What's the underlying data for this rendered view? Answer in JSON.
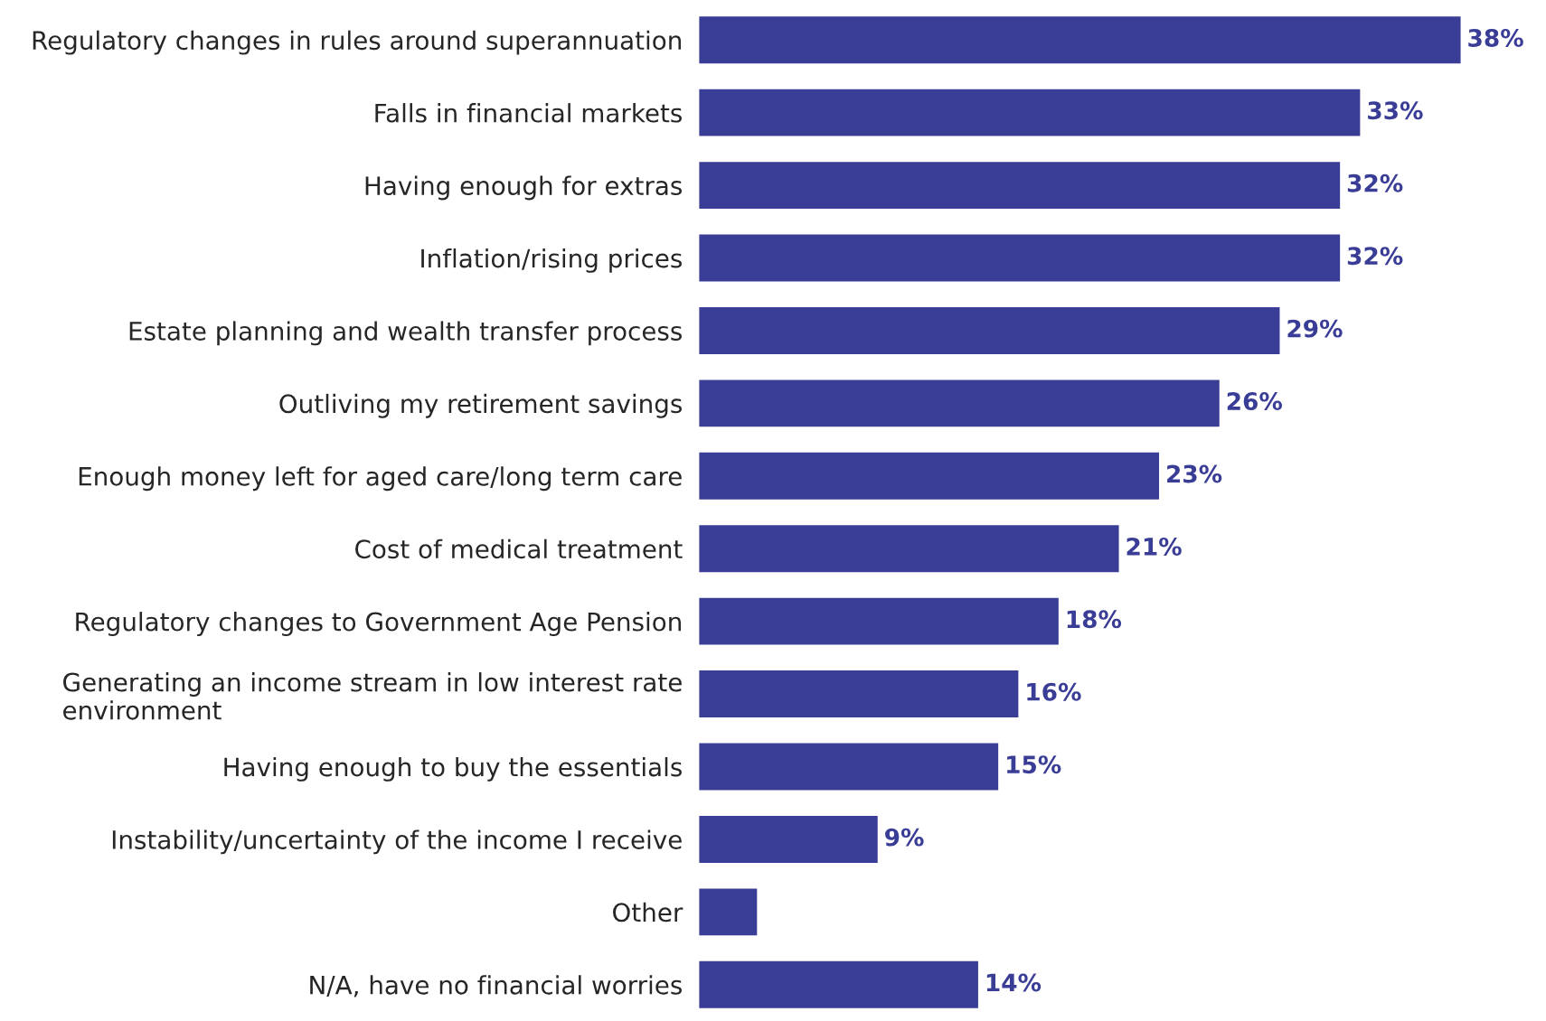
{
  "chart_data": {
    "type": "bar",
    "orientation": "horizontal",
    "categories": [
      "Regulatory changes in rules around superannuation",
      "Falls in financial markets",
      "Having enough for extras",
      "Inflation/rising prices",
      "Estate planning and wealth transfer process",
      "Outliving my retirement savings",
      "Enough money left for aged care/long term care",
      "Cost of medical treatment",
      "Regulatory changes to Government Age Pension",
      "Generating an income stream in low interest rate\nenvironment",
      "Having enough to buy the essentials",
      "Instability/uncertainty of the income I receive",
      "Other",
      "N/A, have no financial worries"
    ],
    "values": [
      38,
      33,
      32,
      32,
      29,
      26,
      23,
      21,
      18,
      16,
      15,
      9,
      3,
      14
    ],
    "value_labels": [
      "38%",
      "33%",
      "32%",
      "32%",
      "29%",
      "26%",
      "23%",
      "21%",
      "18%",
      "16%",
      "15%",
      "9%",
      null,
      "14%"
    ],
    "color": "#3a3d96",
    "grid": false,
    "legend": false
  }
}
